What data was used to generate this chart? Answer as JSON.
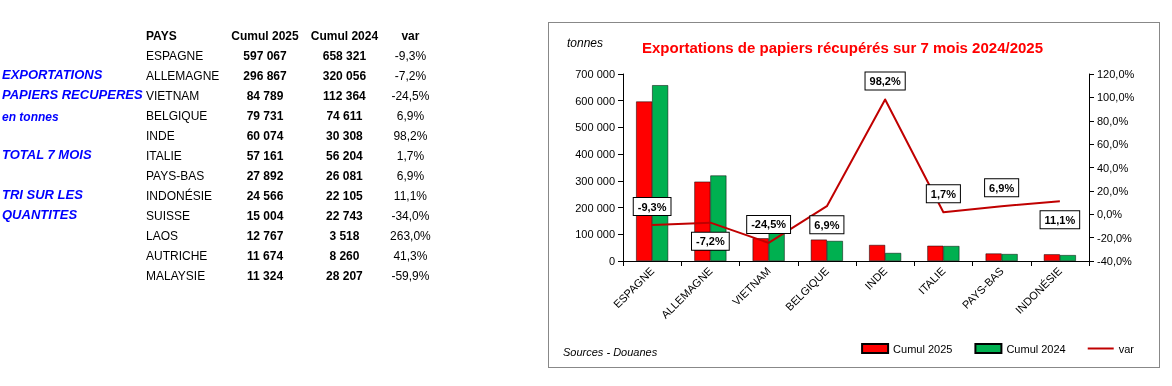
{
  "chart_data": [
    {
      "type": "other",
      "xlabel": "PAYS",
      "categories": [
        "ESPAGNE",
        "ALLEMAGNE",
        "VIETNAM",
        "BELGIQUE",
        "INDE",
        "ITALIE",
        "PAYS-BAS",
        "INDONÉSIE",
        "SUISSE",
        "LAOS",
        "AUTRICHE",
        "MALAYSIE"
      ],
      "series": [
        {
          "name": "Cumul 2025",
          "values": [
            597067,
            296867,
            84789,
            79731,
            60074,
            57161,
            27892,
            24566,
            15004,
            12767,
            11674,
            11324
          ],
          "value_labels": [
            "597 067",
            "296 867",
            "84 789",
            "79 731",
            "60 074",
            "57 161",
            "27 892",
            "24 566",
            "15 004",
            "12 767",
            "11 674",
            "11 324"
          ]
        },
        {
          "name": "Cumul 2024",
          "values": [
            658321,
            320056,
            112364,
            74611,
            30308,
            56204,
            26081,
            22105,
            22743,
            3518,
            8260,
            28207
          ],
          "value_labels": [
            "658 321",
            "320 056",
            "112 364",
            "74 611",
            "30 308",
            "56 204",
            "26 081",
            "22 105",
            "22 743",
            "3 518",
            "8 260",
            "28 207"
          ]
        },
        {
          "name": "var",
          "values": [
            -9.3,
            -7.2,
            -24.5,
            6.9,
            98.2,
            1.7,
            6.9,
            11.1,
            -34.0,
            263.0,
            41.3,
            -59.9
          ],
          "value_labels": [
            "-9,3%",
            "-7,2%",
            "-24,5%",
            "6,9%",
            "98,2%",
            "1,7%",
            "6,9%",
            "11,1%",
            "-34,0%",
            "263,0%",
            "41,3%",
            "-59,9%"
          ]
        }
      ],
      "annotations": [
        "EXPORTATIONS",
        "PAPIERS RECUPERES",
        "en tonnes",
        "TOTAL 7 MOIS",
        "TRI SUR LES",
        "QUANTITES"
      ]
    },
    {
      "type": "bar",
      "title": "Exportations de papiers récupérés sur 7 mois 2024/2025",
      "ylabel": "tonnes",
      "categories": [
        "ESPAGNE",
        "ALLEMAGNE",
        "VIETNAM",
        "BELGIQUE",
        "INDE",
        "ITALIE",
        "PAYS-BAS",
        "INDONÉSIE"
      ],
      "series": [
        {
          "name": "Cumul 2025",
          "color": "#ff0000",
          "values": [
            597000,
            297000,
            85000,
            80000,
            60000,
            57000,
            28000,
            25000
          ]
        },
        {
          "name": "Cumul 2024",
          "color": "#00b050",
          "values": [
            658000,
            320000,
            112000,
            75000,
            30000,
            56000,
            26000,
            22000
          ]
        },
        {
          "name": "var",
          "type": "line",
          "axis": "y2",
          "color": "#c00000",
          "values": [
            -9.3,
            -7.2,
            -24.5,
            6.9,
            98.2,
            1.7,
            6.9,
            11.1
          ],
          "value_labels": [
            "-9,3%",
            "-7,2%",
            "-24,5%",
            "6,9%",
            "98,2%",
            "1,7%",
            "6,9%",
            "11,1%"
          ]
        }
      ],
      "ylim": [
        0,
        700000
      ],
      "yticks": [
        0,
        {
          "value": 100000,
          "label": "100 000"
        },
        {
          "value": 200000,
          "label": "200 000"
        },
        {
          "value": 300000,
          "label": "300 000"
        },
        {
          "value": 400000,
          "label": "400 000"
        },
        {
          "value": 500000,
          "label": "500 000"
        },
        {
          "value": 600000,
          "label": "600 000"
        },
        {
          "value": 700000,
          "label": "700 000"
        }
      ],
      "y2lim": [
        -40,
        120
      ],
      "y2ticks": [
        {
          "value": -40,
          "label": "-40,0%"
        },
        {
          "value": -20,
          "label": "-20,0%"
        },
        {
          "value": 0,
          "label": "0,0%"
        },
        {
          "value": 20,
          "label": "20,0%"
        },
        {
          "value": 40,
          "label": "40,0%"
        },
        {
          "value": 60,
          "label": "60,0%"
        },
        {
          "value": 80,
          "label": "80,0%"
        },
        {
          "value": 100,
          "label": "100,0%"
        },
        {
          "value": 120,
          "label": "120,0%"
        }
      ],
      "grid": false,
      "legend": "bottom right",
      "line_style": "solid",
      "annotations": [
        "Sources - Douanes"
      ]
    }
  ]
}
